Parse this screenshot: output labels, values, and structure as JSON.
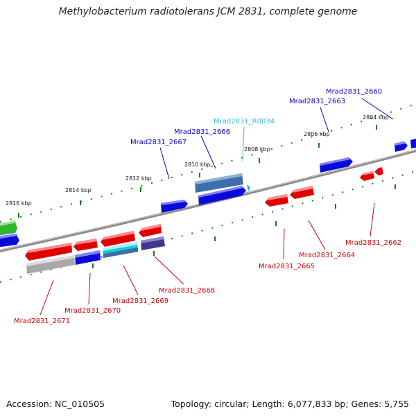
{
  "title": "Methylobacterium radiotolerans JCM 2831, complete genome",
  "footer": {
    "accession": "Accession: NC_010505",
    "summary": "Topology: circular; Length: 6,077,833 bp; Genes: 5,755"
  },
  "colors": {
    "backbone": "#8a8a8a",
    "tick": "#1a7a1a",
    "forward_label": "#0000cc",
    "reverse_label": "#cc0000",
    "rna_label": "#33bbdd"
  },
  "kbp_labels": [
    "2816 kbp",
    "2814 kbp",
    "2812 kbp",
    "2810 kbp",
    "2808 kbp",
    "2806 kbp",
    "2804 kbp"
  ],
  "forward_genes": [
    "Mrad2831_2660",
    "Mrad2831_2663",
    "Mrad2831_R0034",
    "Mrad2831_2666",
    "Mrad2831_2667"
  ],
  "reverse_genes": [
    "Mrad2831_2662",
    "Mrad2831_2664",
    "Mrad2831_2665",
    "Mrad2831_2668",
    "Mrad2831_2669",
    "Mrad2831_2670",
    "Mrad2831_2671"
  ]
}
